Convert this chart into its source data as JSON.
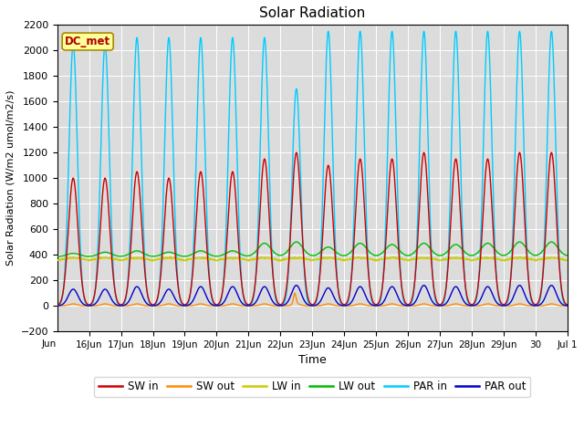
{
  "title": "Solar Radiation",
  "ylabel": "Solar Radiation (W/m2 umol/m2/s)",
  "xlabel": "Time",
  "ylim": [
    -200,
    2200
  ],
  "yticks": [
    -200,
    0,
    200,
    400,
    600,
    800,
    1000,
    1200,
    1400,
    1600,
    1800,
    2000,
    2200
  ],
  "background_color": "#dcdcdc",
  "legend_items": [
    {
      "label": "SW in",
      "color": "#cc0000"
    },
    {
      "label": "SW out",
      "color": "#ff8c00"
    },
    {
      "label": "LW in",
      "color": "#cccc00"
    },
    {
      "label": "LW out",
      "color": "#00bb00"
    },
    {
      "label": "PAR in",
      "color": "#00ccff"
    },
    {
      "label": "PAR out",
      "color": "#0000cc"
    }
  ],
  "station_label": "DC_met",
  "station_label_color": "#aa0000",
  "station_box_facecolor": "#ffff99",
  "station_box_edgecolor": "#aa8800",
  "tick_labels": [
    "16Jun",
    "17Jun",
    "18Jun",
    "19Jun",
    "20Jun",
    "21Jun",
    "22Jun",
    "23Jun",
    "24Jun",
    "25Jun",
    "26Jun",
    "27Jun",
    "28Jun",
    "29Jun",
    "30",
    "Jul 1"
  ],
  "tick_positions": [
    1,
    2,
    3,
    4,
    5,
    6,
    7,
    8,
    9,
    10,
    11,
    12,
    13,
    14,
    15,
    16
  ],
  "figsize": [
    6.4,
    4.8
  ],
  "dpi": 100
}
